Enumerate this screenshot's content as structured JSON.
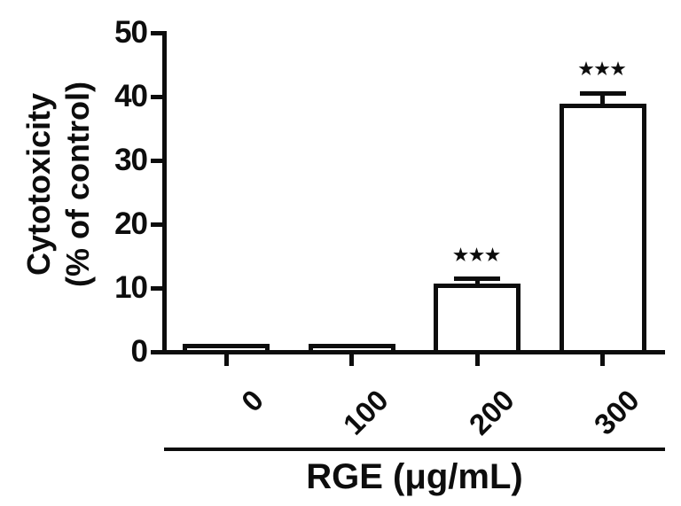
{
  "chart_data": {
    "type": "bar",
    "title": "",
    "categories": [
      "0",
      "100",
      "200",
      "300"
    ],
    "values": [
      0.5,
      0.6,
      10,
      38.2
    ],
    "errors": [
      0,
      0,
      1.4,
      2.3
    ],
    "significance": [
      "",
      "",
      "***",
      "***"
    ],
    "xlabel": "RGE (μg/mL)",
    "ylabel": "Cytotoxicity (% of control)",
    "ylabel_lines": [
      "Cytotoxicity",
      "(% of control)"
    ],
    "yticks": [
      0,
      10,
      20,
      30,
      40,
      50
    ],
    "ylim": [
      0,
      50
    ],
    "grid": false,
    "legend": null,
    "bar_fill": "#ffffff",
    "bar_stroke": "#0d0d0d",
    "significance_glyph": "★"
  }
}
